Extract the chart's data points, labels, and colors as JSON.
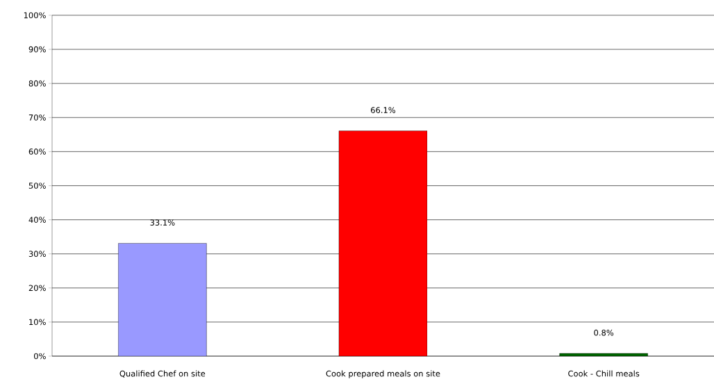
{
  "chart_data": {
    "type": "bar",
    "categories": [
      "Qualified Chef on site",
      "Cook prepared meals on site",
      "Cook - Chill meals"
    ],
    "values": [
      33.1,
      66.1,
      0.8
    ],
    "colors": [
      "#9999ff",
      "#ff0000",
      "#006600"
    ],
    "value_labels": [
      "33.1%",
      "66.1%",
      "0.8%"
    ],
    "ylim": [
      0,
      100
    ],
    "yticks": [
      {
        "value": 0,
        "label": "0%"
      },
      {
        "value": 10,
        "label": "10%"
      },
      {
        "value": 20,
        "label": "20%"
      },
      {
        "value": 30,
        "label": "30%"
      },
      {
        "value": 40,
        "label": "40%"
      },
      {
        "value": 50,
        "label": "50%"
      },
      {
        "value": 60,
        "label": "60%"
      },
      {
        "value": 70,
        "label": "70%"
      },
      {
        "value": 80,
        "label": "80%"
      },
      {
        "value": 90,
        "label": "90%"
      },
      {
        "value": 100,
        "label": "100%"
      }
    ],
    "grid": true
  }
}
